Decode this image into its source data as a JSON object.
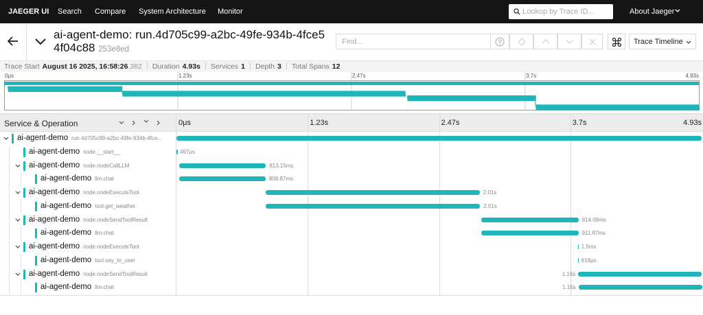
{
  "nav": {
    "brand": "JAEGER UI",
    "links": [
      "Search",
      "Compare",
      "System Architecture",
      "Monitor"
    ],
    "search_placeholder": "Lookup by Trace ID...",
    "about": "About Jaeger"
  },
  "trace": {
    "title": "ai-agent-demo: run.4d705c99-a2bc-49fe-934b-4fce54f04c88",
    "id": "253e8ed",
    "find_placeholder": "Find...",
    "view": "Trace Timeline",
    "summary": [
      {
        "label": "Trace Start",
        "value": "August 16 2025, 16:58:26",
        "fraction": ".382"
      },
      {
        "label": "Duration",
        "value": "4.93s"
      },
      {
        "label": "Services",
        "value": 1
      },
      {
        "label": "Depth",
        "value": 3
      },
      {
        "label": "Total Spans",
        "value": 12
      }
    ],
    "column": "Service & Operation",
    "range": [
      0,
      4930
    ],
    "ticks": [
      {
        "value": 0,
        "label": "0μs"
      },
      {
        "value": 1232.5,
        "label": "1.23s"
      },
      {
        "value": 2465,
        "label": "2.47s"
      },
      {
        "value": 3697.5,
        "label": "3.7s"
      },
      {
        "value": 4930,
        "label": "4.93s"
      }
    ],
    "span_color": "#1fb5b9",
    "spans": [
      {
        "depth": 0,
        "service": "ai-agent-demo",
        "operation": "run.4d705c99-a2bc-49fe-934b-4fce...",
        "start": 0,
        "duration": 4930
      },
      {
        "depth": 1,
        "service": "ai-agent-demo",
        "operation": "node.__start__",
        "start": 0,
        "duration": 0.497,
        "duration_label": "497μs"
      },
      {
        "depth": 1,
        "service": "ai-agent-demo",
        "operation": "node.nodeCallLLM",
        "start": 26,
        "duration": 813.15,
        "duration_label": "813.15ms"
      },
      {
        "depth": 2,
        "service": "ai-agent-demo",
        "operation": "llm.chat",
        "start": 28,
        "duration": 808.87,
        "duration_label": "808.87ms"
      },
      {
        "depth": 1,
        "service": "ai-agent-demo",
        "operation": "node.nodeExecuteTool",
        "start": 837,
        "duration": 2010,
        "duration_label": "2.01s"
      },
      {
        "depth": 2,
        "service": "ai-agent-demo",
        "operation": "tool.get_weather",
        "start": 840,
        "duration": 2010,
        "duration_label": "2.01s"
      },
      {
        "depth": 1,
        "service": "ai-agent-demo",
        "operation": "node.nodeSendToolResult",
        "start": 2860,
        "duration": 914.09,
        "duration_label": "914.09ms"
      },
      {
        "depth": 2,
        "service": "ai-agent-demo",
        "operation": "llm.chat",
        "start": 2862,
        "duration": 911.87,
        "duration_label": "911.87ms"
      },
      {
        "depth": 1,
        "service": "ai-agent-demo",
        "operation": "node.nodeExecuteTool",
        "start": 3767,
        "duration": 1.5,
        "duration_label": "1.5ms"
      },
      {
        "depth": 2,
        "service": "ai-agent-demo",
        "operation": "tool.say_to_user",
        "start": 3768,
        "duration": 0.618,
        "duration_label": "618μs"
      },
      {
        "depth": 1,
        "service": "ai-agent-demo",
        "operation": "node.nodeSendToolResult",
        "start": 3772,
        "duration": 1160,
        "duration_label": "1.16s"
      },
      {
        "depth": 2,
        "service": "ai-agent-demo",
        "operation": "llm.chat",
        "start": 3774,
        "duration": 1160,
        "duration_label": "1.16s"
      }
    ]
  }
}
